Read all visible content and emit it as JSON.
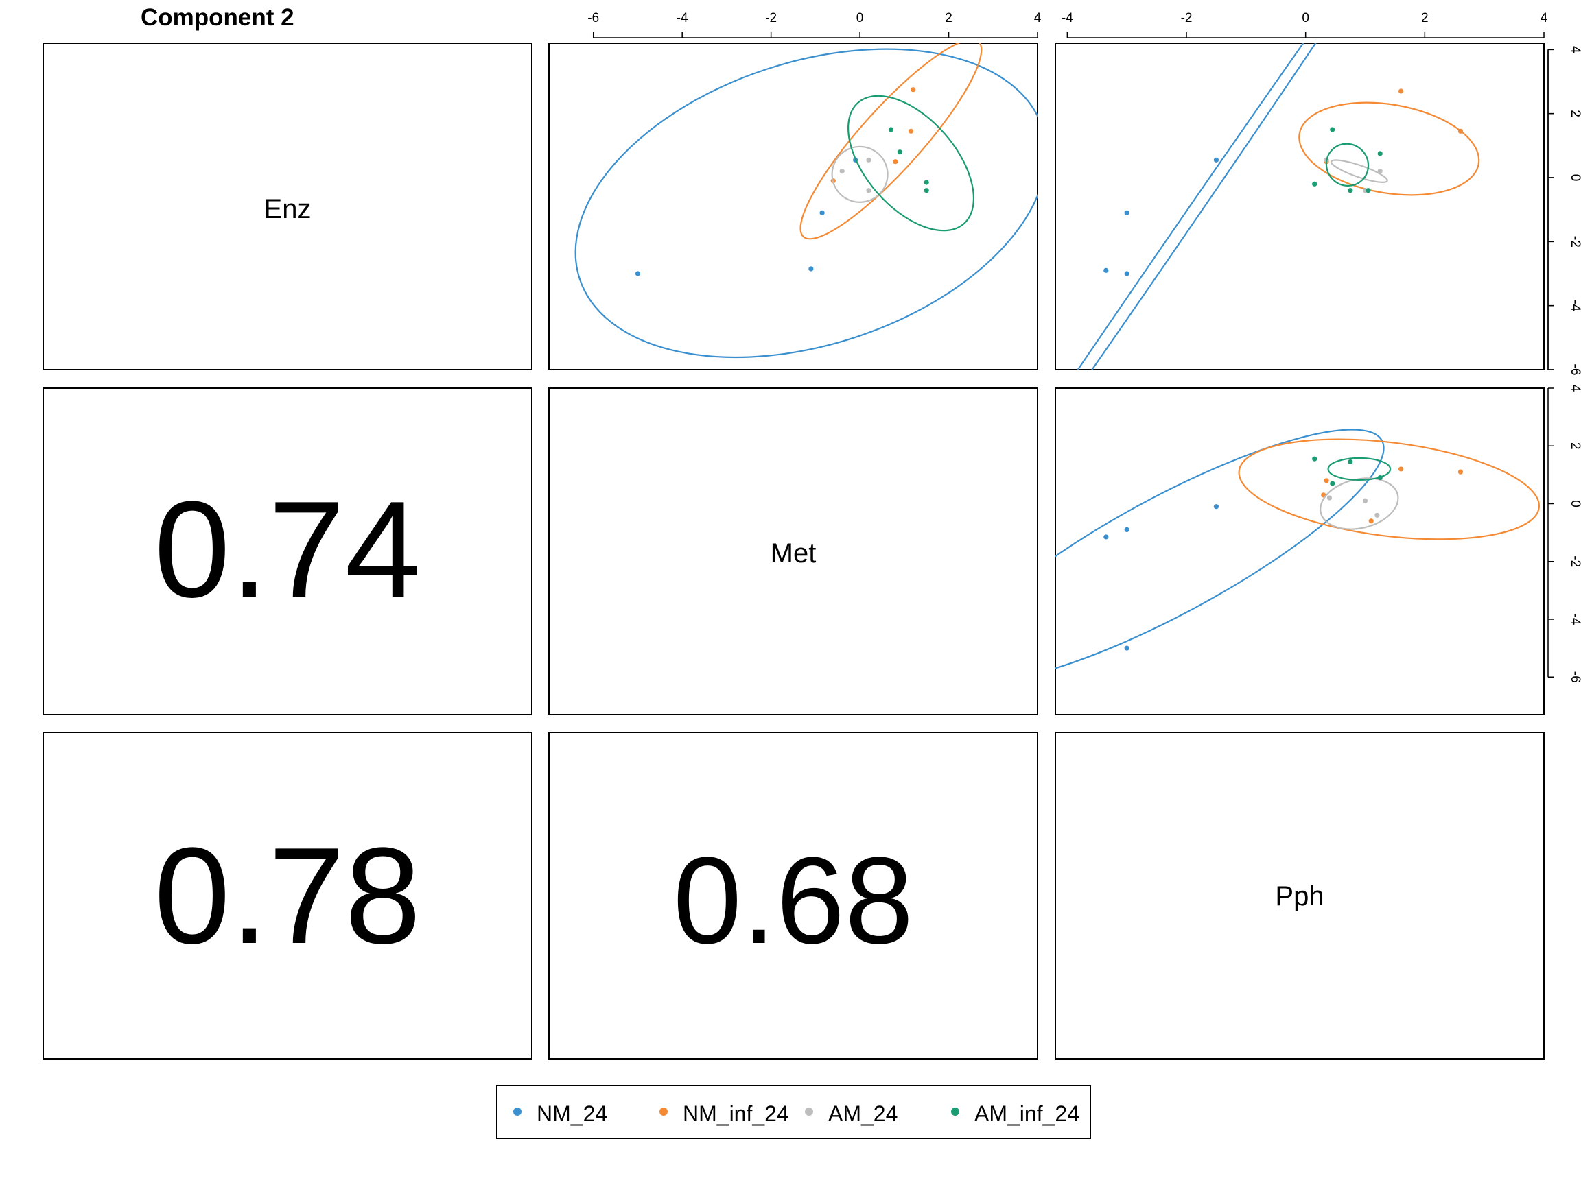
{
  "title": "Component 2",
  "colors": {
    "NM_24": "#3a8fcf",
    "NM_inf_24": "#f58a35",
    "AM_24": "#bdbdbd",
    "AM_inf_24": "#1a9b72"
  },
  "chart_data": {
    "type": "scatter",
    "layout": "pairs-matrix",
    "title": "Component 2",
    "blocks": [
      "Enz",
      "Met",
      "Pph"
    ],
    "diagonal": [
      "Enz",
      "Met",
      "Pph"
    ],
    "correlations": [
      {
        "row": "Met",
        "col": "Enz",
        "value": "0.74"
      },
      {
        "row": "Pph",
        "col": "Enz",
        "value": "0.78"
      },
      {
        "row": "Pph",
        "col": "Met",
        "value": "0.68"
      }
    ],
    "legend": {
      "position": "bottom",
      "entries": [
        "NM_24",
        "NM_inf_24",
        "AM_24",
        "AM_inf_24"
      ]
    },
    "scatter_panels": [
      {
        "id": "Enz-Met",
        "row": "Enz",
        "col": "Met",
        "xlim": [
          -7,
          4
        ],
        "ylim": [
          -6,
          4.2
        ],
        "xticks": [
          -6,
          -4,
          -2,
          0,
          2,
          4
        ],
        "yticks": [
          -6,
          -4,
          -2,
          0,
          2,
          4
        ],
        "x_axis": "top",
        "y_axis": "right",
        "series": [
          {
            "name": "NM_24",
            "points": [
              [
                -5,
                -3
              ],
              [
                -1.1,
                -2.85
              ],
              [
                -0.85,
                -1.1
              ],
              [
                -0.1,
                0.55
              ]
            ],
            "ellipse": {
              "cx": -1.1,
              "cy": -0.8,
              "points": [
                [
                  4.1,
                  1.6
                ],
                [
                  -6.3,
                  -3.2
                ],
                [
                  -4.2,
                  -5.4
                ],
                [
                  2.0,
                  -3.6
                ]
              ]
            }
          },
          {
            "name": "NM_inf_24",
            "points": [
              [
                -0.6,
                -0.1
              ],
              [
                0.8,
                0.5
              ],
              [
                1.15,
                1.45
              ],
              [
                1.2,
                2.75
              ]
            ],
            "ellipse": {
              "cx": 0.7,
              "cy": 1.2,
              "points": [
                [
                  2.7,
                  4.2
                ],
                [
                  -1.3,
                  -1.8
                ],
                [
                  2.6,
                  3.3
                ],
                [
                  -1.2,
                  -1.9
                ]
              ]
            }
          },
          {
            "name": "AM_24",
            "points": [
              [
                -0.4,
                0.2
              ],
              [
                0.2,
                0.55
              ],
              [
                0.2,
                -0.4
              ]
            ],
            "ellipse": {
              "cx": 0,
              "cy": 0.1,
              "points": [
                [
                  0.85,
                  0.45
                ],
                [
                  -0.85,
                  -0.25
                ],
                [
                  -0.5,
                  1.2
                ],
                [
                  0.5,
                  -1.0
                ]
              ]
            }
          },
          {
            "name": "AM_inf_24",
            "points": [
              [
                0.7,
                1.5
              ],
              [
                0.9,
                0.8
              ],
              [
                1.5,
                -0.15
              ],
              [
                1.5,
                -0.4
              ]
            ],
            "ellipse": {
              "cx": 1.15,
              "cy": 0.45,
              "points": [
                [
                  2.2,
                  -1.7
                ],
                [
                  0.1,
                  2.6
                ],
                [
                  0.8,
                  0.4
                ],
                [
                  1.5,
                  0.5
                ]
              ]
            }
          }
        ]
      },
      {
        "id": "Enz-Pph",
        "row": "Enz",
        "col": "Pph",
        "xlim": [
          -4.2,
          4
        ],
        "ylim": [
          -6,
          4.2
        ],
        "xticks": [
          -4,
          -2,
          0,
          2,
          4
        ],
        "yticks": [
          -6,
          -4,
          -2,
          0,
          2,
          4
        ],
        "x_axis": "top",
        "y_axis": "right",
        "series": [
          {
            "name": "NM_24",
            "points": [
              [
                -1.5,
                0.55
              ],
              [
                -3.0,
                -1.1
              ],
              [
                -3.35,
                -2.9
              ],
              [
                -3.0,
                -3.0
              ]
            ],
            "ellipse": {
              "cx": -2.3,
              "cy": -2.2,
              "points": [
                [
                  -0.7,
                  2.5
                ],
                [
                  -3.8,
                  -5.9
                ],
                [
                  -2.1,
                  -2.0
                ],
                [
                  -2.5,
                  -2.4
                ]
              ]
            }
          },
          {
            "name": "NM_inf_24",
            "points": [
              [
                0.35,
                0.5
              ],
              [
                1.6,
                2.7
              ],
              [
                2.6,
                1.45
              ]
            ],
            "ellipse": {
              "cx": 1.4,
              "cy": 0.9,
              "points": [
                [
                  3.7,
                  3.2
                ],
                [
                  -0.9,
                  -1.4
                ],
                [
                  1.0,
                  2.3
                ],
                [
                  1.8,
                  -0.5
                ]
              ]
            }
          },
          {
            "name": "AM_24",
            "points": [
              [
                0.35,
                0.55
              ],
              [
                1.25,
                0.2
              ],
              [
                1.0,
                -0.4
              ]
            ],
            "ellipse": {
              "cx": 0.9,
              "cy": 0.2,
              "points": [
                [
                  1.95,
                  -0.85
                ],
                [
                  -0.15,
                  1.25
                ],
                [
                  1.25,
                  0.5
                ],
                [
                  0.55,
                  -0.1
                ]
              ]
            }
          },
          {
            "name": "AM_inf_24",
            "points": [
              [
                0.45,
                1.5
              ],
              [
                1.25,
                0.75
              ],
              [
                0.15,
                -0.2
              ],
              [
                0.75,
                -0.4
              ],
              [
                1.05,
                -0.4
              ]
            ],
            "ellipse": {
              "cx": 0.7,
              "cy": 0.4,
              "points": [
                [
                  1.75,
                  0.45
                ],
                [
                  -0.35,
                  0.35
                ],
                [
                  0.75,
                  2.6
                ],
                [
                  0.65,
                  -1.8
                ]
              ]
            }
          }
        ]
      },
      {
        "id": "Met-Pph",
        "row": "Met",
        "col": "Pph",
        "xlim": [
          -4.2,
          4
        ],
        "ylim": [
          -7.3,
          4
        ],
        "xticks": [],
        "yticks": [
          -6,
          -4,
          -2,
          0,
          2,
          4
        ],
        "x_axis": "none",
        "y_axis": "right",
        "series": [
          {
            "name": "NM_24",
            "points": [
              [
                -1.5,
                -0.1
              ],
              [
                -3.0,
                -0.9
              ],
              [
                -3.35,
                -1.15
              ],
              [
                -3.0,
                -5.0
              ]
            ],
            "ellipse": {
              "cx": -2.3,
              "cy": -1.8,
              "points": [
                [
                  -1.7,
                  3.65
                ],
                [
                  -2.9,
                  -7.25
                ],
                [
                  -0.55,
                  -1.2
                ],
                [
                  -4.05,
                  -2.4
                ]
              ]
            }
          },
          {
            "name": "NM_inf_24",
            "points": [
              [
                1.6,
                1.2
              ],
              [
                2.6,
                1.1
              ],
              [
                0.35,
                0.8
              ],
              [
                1.1,
                -0.6
              ],
              [
                0.3,
                0.3
              ]
            ],
            "ellipse": {
              "cx": 1.4,
              "cy": 0.5,
              "points": [
                [
                  3.75,
                  1.05
                ],
                [
                  -0.95,
                  -0.05
                ],
                [
                  1.55,
                  1.75
                ],
                [
                  1.25,
                  -0.75
                ]
              ]
            }
          },
          {
            "name": "AM_24",
            "points": [
              [
                0.4,
                0.2
              ],
              [
                1.2,
                -0.4
              ],
              [
                1.0,
                0.1
              ]
            ],
            "ellipse": {
              "cx": 0.9,
              "cy": 0,
              "points": [
                [
                  1.95,
                  -0.85
                ],
                [
                  -0.15,
                  0.85
                ],
                [
                  1.1,
                  0.45
                ],
                [
                  0.7,
                  -0.45
                ]
              ]
            }
          },
          {
            "name": "AM_inf_24",
            "points": [
              [
                0.15,
                1.55
              ],
              [
                0.45,
                0.7
              ],
              [
                0.75,
                1.45
              ],
              [
                1.25,
                0.9
              ]
            ],
            "ellipse": {
              "cx": 0.9,
              "cy": 1.2,
              "points": [
                [
                  1.65,
                  0.6
                ],
                [
                  0.15,
                  1.8
                ],
                [
                  0.75,
                  2.15
                ],
                [
                  1.05,
                  0.25
                ]
              ]
            }
          }
        ]
      }
    ]
  }
}
